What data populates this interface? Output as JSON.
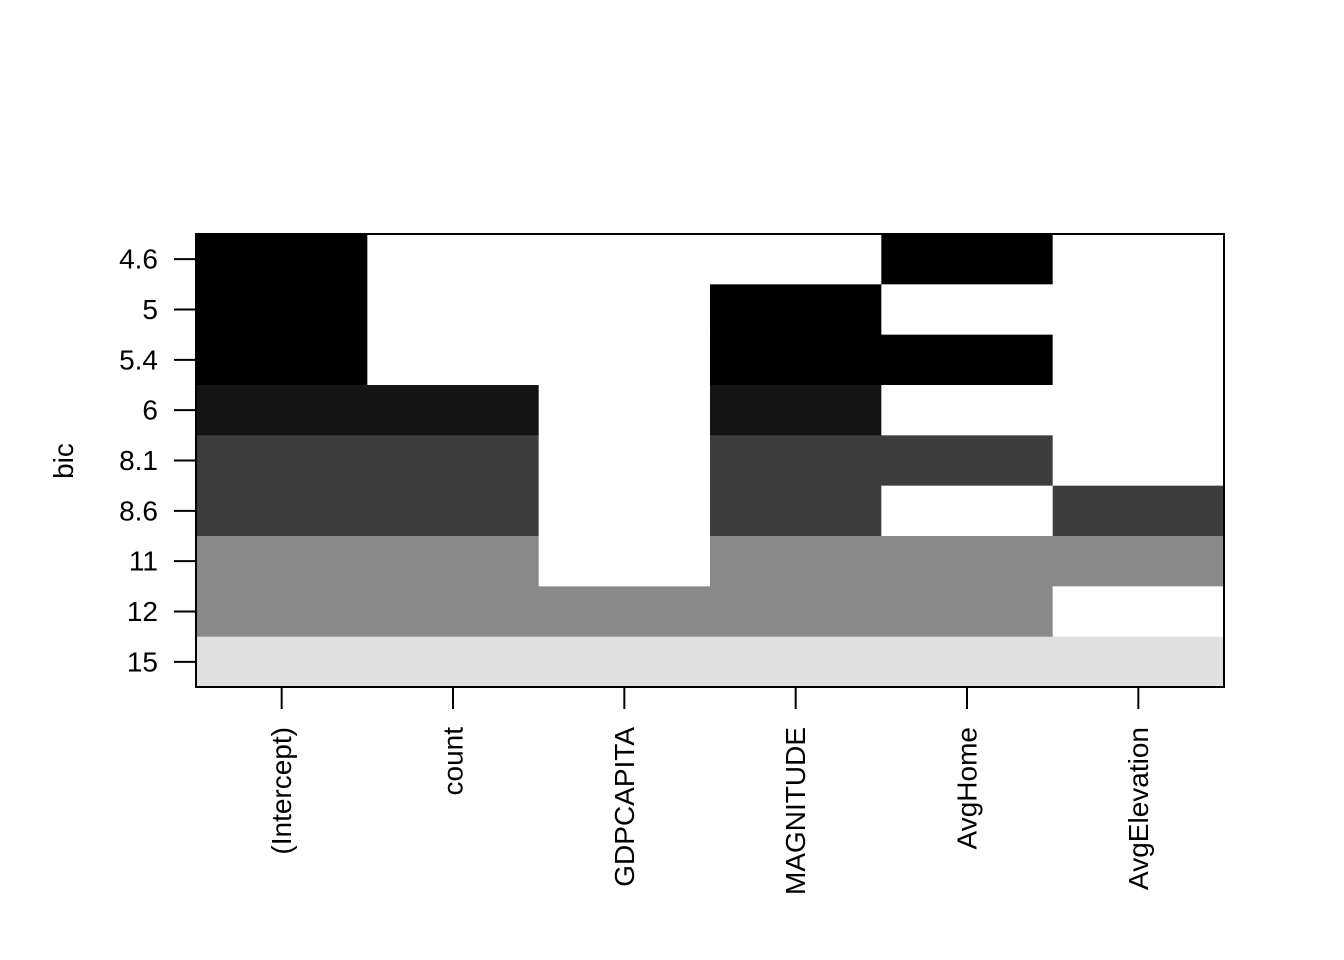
{
  "chart_data": {
    "type": "heatmap",
    "title": "",
    "xlabel": "",
    "ylabel": "bic",
    "x_categories": [
      "(Intercept)",
      "count",
      "GDPCAPITA",
      "MAGNITUDE",
      "AvgHome",
      "AvgElevation"
    ],
    "y_categories": [
      "4.6",
      "5",
      "5.4",
      "6",
      "8.1",
      "8.6",
      "11",
      "12",
      "15"
    ],
    "shade_by_row": [
      "#000000",
      "#000000",
      "#000000",
      "#141414",
      "#3d3d3d",
      "#3d3d3d",
      "#898989",
      "#898989",
      "#e0e0e0"
    ],
    "unselected_color": "#ffffff",
    "included": [
      [
        1,
        0,
        0,
        0,
        1,
        0
      ],
      [
        1,
        0,
        0,
        1,
        0,
        0
      ],
      [
        1,
        0,
        0,
        1,
        1,
        0
      ],
      [
        1,
        1,
        0,
        1,
        0,
        0
      ],
      [
        1,
        1,
        0,
        1,
        1,
        0
      ],
      [
        1,
        1,
        0,
        1,
        0,
        1
      ],
      [
        1,
        1,
        0,
        1,
        1,
        1
      ],
      [
        1,
        1,
        1,
        1,
        1,
        0
      ],
      [
        1,
        1,
        1,
        1,
        1,
        1
      ]
    ],
    "grid": false,
    "legend": "none"
  }
}
